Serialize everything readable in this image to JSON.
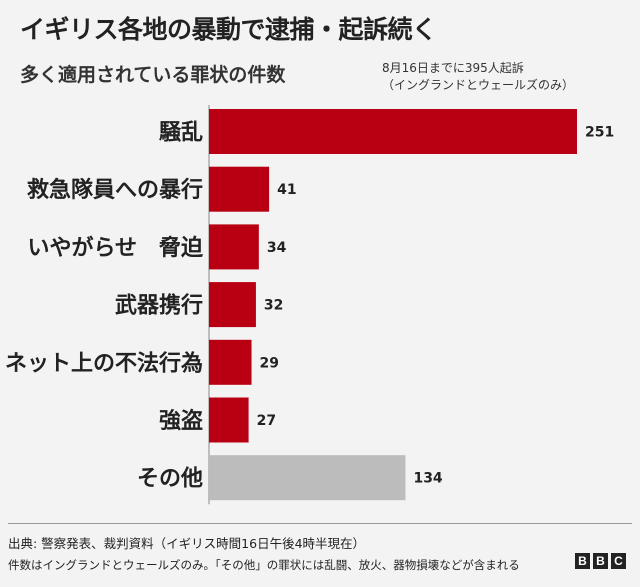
{
  "chart_data": {
    "type": "bar",
    "orientation": "horizontal",
    "title": "イギリス各地の暴動で逮捕・起訴続く",
    "subtitle": "多く適用されている罪状の件数",
    "note_lines": [
      "8月16日までに395人起訴",
      "（イングランドとウェールズのみ）"
    ],
    "categories": [
      "騒乱",
      "救急隊員への暴行",
      "いやがらせ　脅迫",
      "武器携行",
      "ネット上の不法行為",
      "強盗",
      "その他"
    ],
    "values": [
      251,
      41,
      34,
      32,
      29,
      27,
      134
    ],
    "colors": [
      "#b80012",
      "#b80012",
      "#b80012",
      "#b80012",
      "#b80012",
      "#b80012",
      "#bcbcbc"
    ],
    "xlim": [
      0,
      251
    ]
  },
  "footer": {
    "source": "出典: 警察発表、裁判資料（イギリス時間16日午後4時半現在）",
    "footnote": "件数はイングランドとウェールズのみ。「その他」の罪状には乱闘、放火、器物損壊などが含まれる"
  },
  "logo": [
    "B",
    "B",
    "C"
  ]
}
